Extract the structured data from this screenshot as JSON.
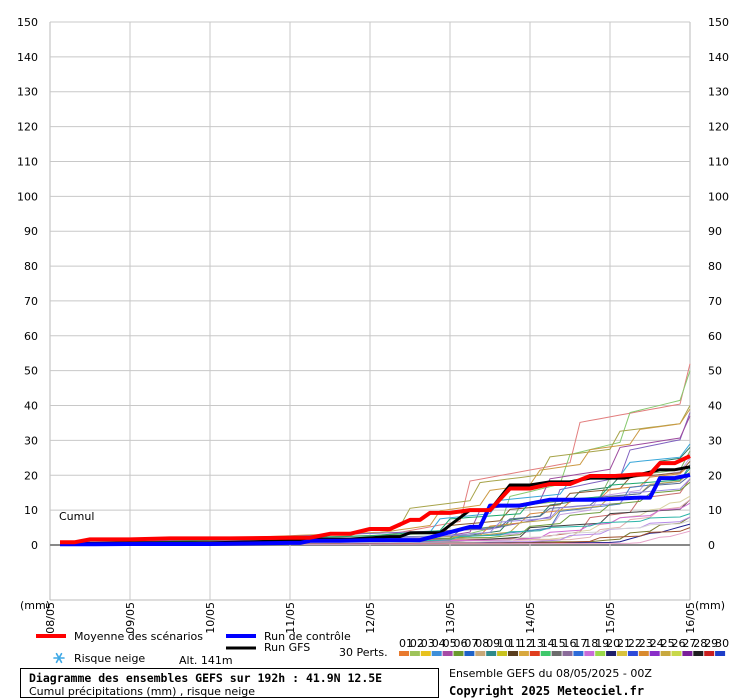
{
  "chart_data": {
    "type": "line",
    "ylabel_left": "(mm)",
    "ylabel_right": "(mm)",
    "ylim": [
      -15,
      150
    ],
    "yticks": [
      0,
      10,
      20,
      30,
      40,
      50,
      60,
      70,
      80,
      90,
      100,
      110,
      120,
      130,
      140,
      150
    ],
    "x_dates": [
      "08/05",
      "09/05",
      "10/05",
      "11/05",
      "12/05",
      "13/05",
      "14/05",
      "15/05",
      "16/05"
    ],
    "x_unit": "hours since 08/05 00Z",
    "x_range": [
      0,
      192
    ],
    "grid": true,
    "cumul_label": "Cumul",
    "series": [
      {
        "name": "Moyenne des scénarios",
        "color": "#ff0000",
        "width": 4,
        "points": [
          [
            3,
            0.8
          ],
          [
            12,
            1.6
          ],
          [
            36,
            1.9
          ],
          [
            72,
            2.1
          ],
          [
            84,
            3.2
          ],
          [
            96,
            4.6
          ],
          [
            108,
            7.2
          ],
          [
            114,
            9.2
          ],
          [
            126,
            10
          ],
          [
            138,
            16.2
          ],
          [
            150,
            17.5
          ],
          [
            162,
            19.8
          ],
          [
            177,
            20.3
          ],
          [
            183,
            23.5
          ],
          [
            192,
            25.5
          ]
        ]
      },
      {
        "name": "Run de contrôle",
        "color": "#0000ff",
        "width": 4,
        "points": [
          [
            3,
            0.2
          ],
          [
            24,
            0.3
          ],
          [
            72,
            0.6
          ],
          [
            78,
            1.2
          ],
          [
            96,
            1.4
          ],
          [
            126,
            5.2
          ],
          [
            132,
            11.3
          ],
          [
            150,
            13
          ],
          [
            177,
            13.6
          ],
          [
            183,
            19.2
          ],
          [
            192,
            20.1
          ]
        ]
      },
      {
        "name": "Run GFS",
        "color": "#000000",
        "width": 3,
        "points": [
          [
            3,
            0.5
          ],
          [
            24,
            0.6
          ],
          [
            72,
            1.2
          ],
          [
            78,
            1.7
          ],
          [
            102,
            2.4
          ],
          [
            108,
            3.5
          ],
          [
            126,
            10
          ],
          [
            138,
            17.2
          ],
          [
            150,
            18.1
          ],
          [
            162,
            19.2
          ],
          [
            183,
            21.6
          ],
          [
            192,
            22.4
          ]
        ]
      }
    ],
    "member_colors": [
      "#e27d7d",
      "#86c96e",
      "#a7a44a",
      "#cc9a44",
      "#7f61c0",
      "#9d4a9e",
      "#38a6d9",
      "#2f7a60",
      "#7bb06a",
      "#c5a3e0",
      "#8a5a2e",
      "#d88a40",
      "#4c7dbf",
      "#1aa86b",
      "#bfa850",
      "#5a6e96",
      "#c96d6d",
      "#9b8be4",
      "#6e9c3c",
      "#d8d1a0",
      "#3f3f3f",
      "#e2b0b0",
      "#cf6ad3",
      "#2bb4a8",
      "#7a7a30",
      "#b68ae9",
      "#d6d6d6",
      "#1f1f8f",
      "#a0522d",
      "#e6a2c8"
    ]
  },
  "legend": {
    "mean_label": "Moyenne des scénarios",
    "control_label": "Run de contrôle",
    "gfs_label": "Run GFS",
    "snow_label": "Risque neige",
    "altitude": "Alt. 141m",
    "perturbations_label": "30 Perts.",
    "perturbation_numbers": [
      "01",
      "02",
      "03",
      "04",
      "05",
      "06",
      "07",
      "08",
      "09",
      "10",
      "11",
      "12",
      "13",
      "14",
      "15",
      "16",
      "17",
      "18",
      "19",
      "20",
      "21",
      "22",
      "23",
      "24",
      "25",
      "26",
      "27",
      "28",
      "29",
      "30"
    ],
    "perturbation_swatches": [
      "#e87a2e",
      "#9ec35a",
      "#e8c21e",
      "#3e8fd8",
      "#a64aa6",
      "#6b9a2e",
      "#1e62c8",
      "#c8a878",
      "#2e8a8a",
      "#c8c21e",
      "#5a3e1e",
      "#d8a83e",
      "#e03e1e",
      "#3ec86b",
      "#6b6b6b",
      "#8a6b9a",
      "#2e6bd8",
      "#c86bd8",
      "#9ad84a",
      "#1e1e6b",
      "#d8c23e",
      "#2e4ad8",
      "#d88a2e",
      "#8a2ec8",
      "#c8a83e",
      "#c8d84a",
      "#7a1e9a",
      "#1e1e1e",
      "#c81e1e",
      "#1e3ec8"
    ]
  },
  "info": {
    "title": "Diagramme des ensembles GEFS sur 192h : 41.9N 12.5E",
    "subtitle": "Cumul précipitations (mm) , risque neige",
    "run": "Ensemble GEFS du 08/05/2025 - 00Z",
    "copyright": "Copyright 2025 Meteociel.fr"
  }
}
